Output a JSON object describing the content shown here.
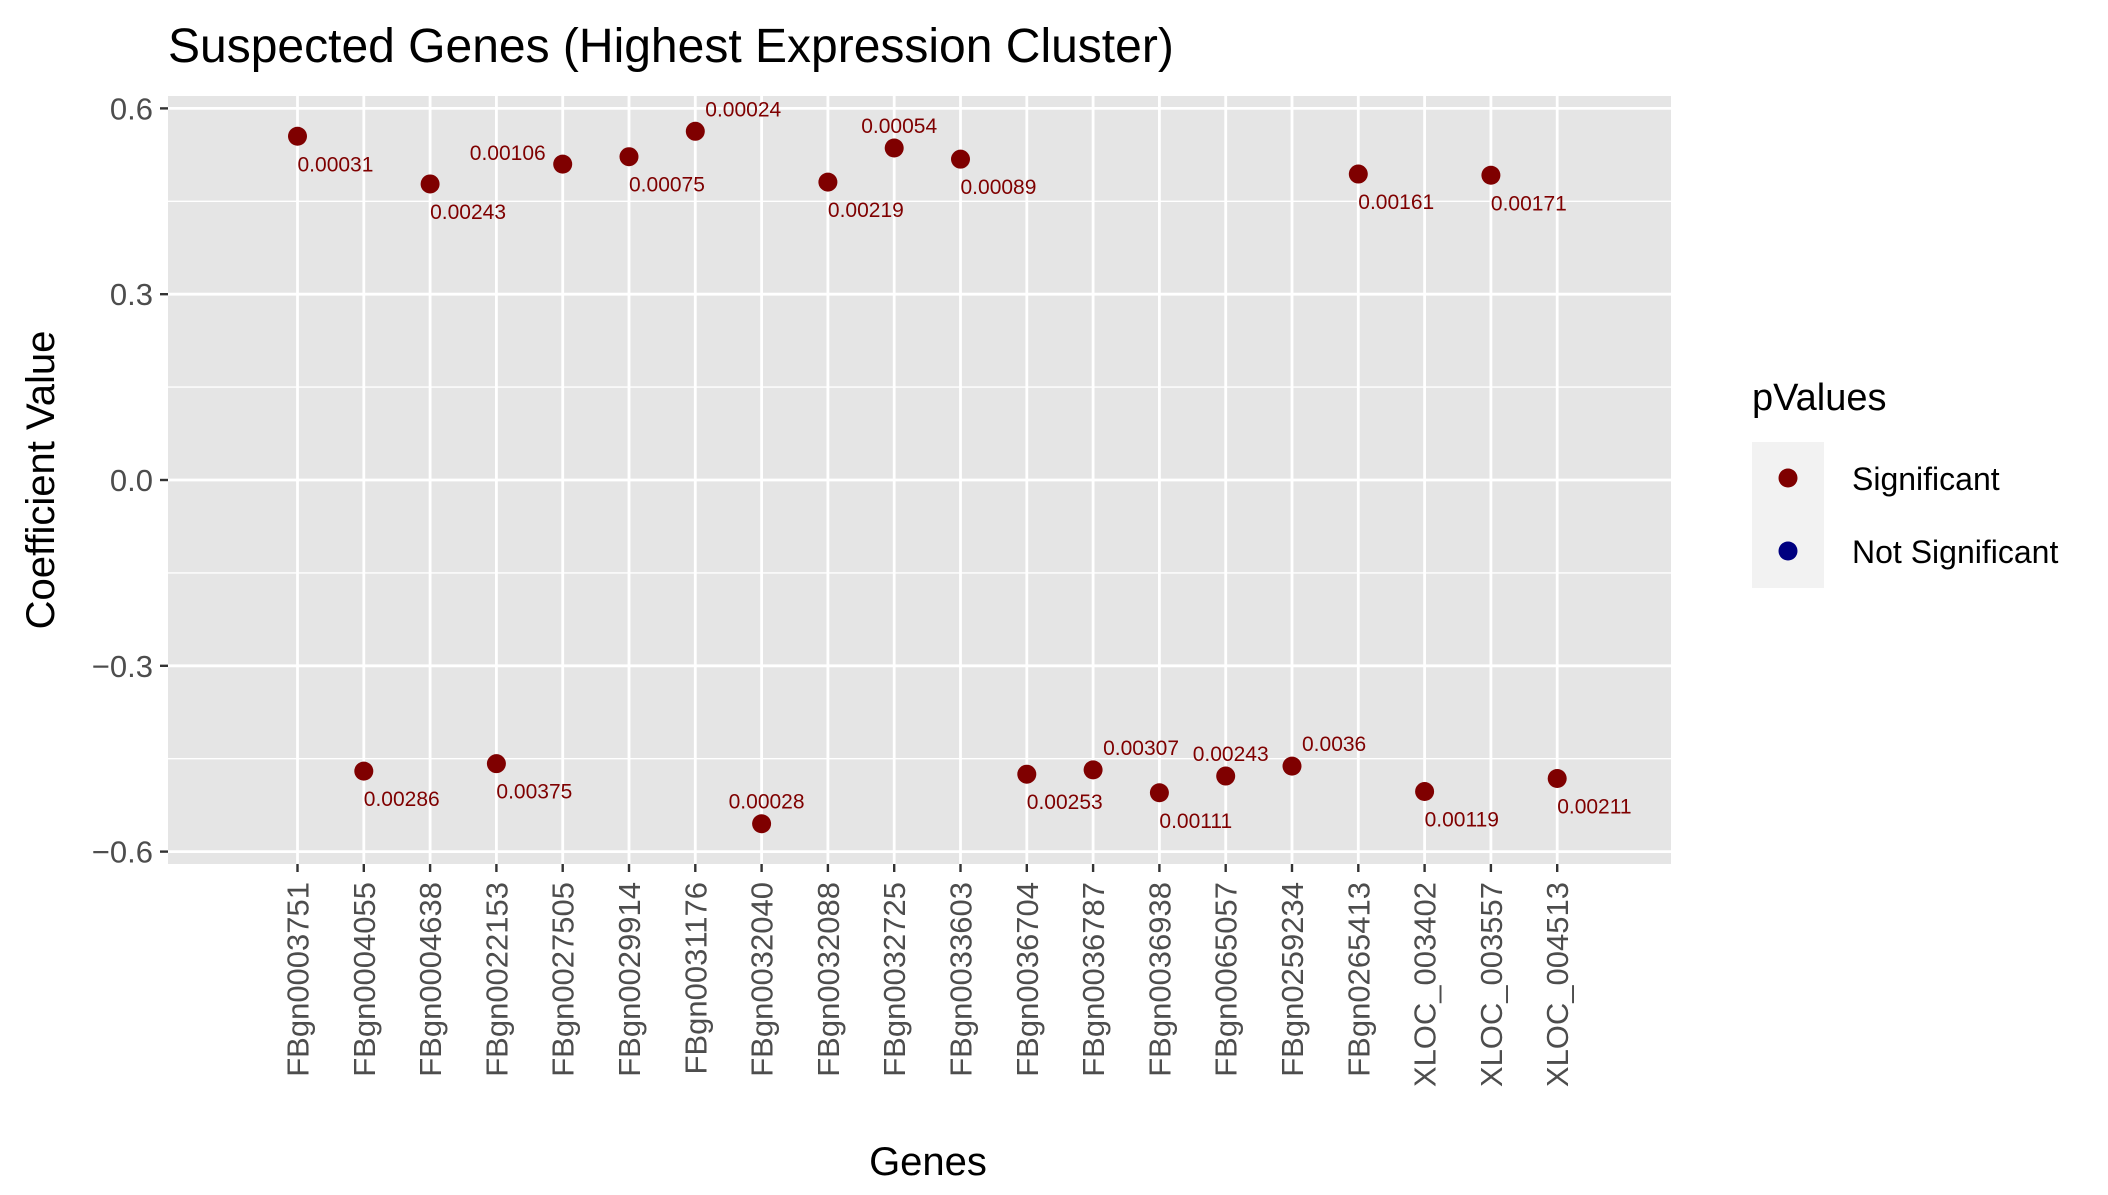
{
  "chart_data": {
    "type": "scatter",
    "title": "Suspected Genes (Highest Expression Cluster)",
    "xlabel": "Genes",
    "ylabel": "Coefficient Value",
    "ylim": [
      -0.62,
      0.62
    ],
    "yticks": [
      0.6,
      0.3,
      0.0,
      -0.3,
      -0.6
    ],
    "ytick_labels": [
      "0.6",
      "0.3",
      "0.0",
      "−0.3",
      "−0.6"
    ],
    "grid": true,
    "categories": [
      "FBgn0003751",
      "FBgn0004055",
      "FBgn0004638",
      "FBgn0022153",
      "FBgn0027505",
      "FBgn0029914",
      "FBgn0031176",
      "FBgn0032040",
      "FBgn0032088",
      "FBgn0032725",
      "FBgn0033603",
      "FBgn0036704",
      "FBgn0036787",
      "FBgn0036938",
      "FBgn0065057",
      "FBgn0259234",
      "FBgn0265413",
      "XLOC_003402",
      "XLOC_003557",
      "XLOC_004513"
    ],
    "values": [
      0.555,
      -0.47,
      0.478,
      -0.458,
      0.51,
      0.522,
      0.563,
      -0.555,
      0.481,
      0.536,
      0.518,
      -0.475,
      -0.468,
      -0.505,
      -0.478,
      -0.462,
      0.494,
      -0.503,
      0.492,
      -0.482
    ],
    "labels": [
      "0.00031",
      "0.00286",
      "0.00243",
      "0.00375",
      "0.00106",
      "0.00075",
      "0.00024",
      "0.00028",
      "0.00219",
      "0.00054",
      "0.00089",
      "0.00253",
      "0.00307",
      "0.00111",
      "0.00243",
      "0.0036",
      "0.00161",
      "0.00119",
      "0.00171",
      "0.00211"
    ],
    "groups": [
      "Significant",
      "Significant",
      "Significant",
      "Significant",
      "Significant",
      "Significant",
      "Significant",
      "Significant",
      "Significant",
      "Significant",
      "Significant",
      "Significant",
      "Significant",
      "Significant",
      "Significant",
      "Significant",
      "Significant",
      "Significant",
      "Significant",
      "Significant"
    ],
    "legend": {
      "title": "pValues",
      "position": "right",
      "entries": [
        {
          "name": "Significant",
          "color": "#7f0000"
        },
        {
          "name": "Not Significant",
          "color": "#000080"
        }
      ]
    },
    "panel_color": "#e5e5e5",
    "grid_color": "#ffffff"
  }
}
